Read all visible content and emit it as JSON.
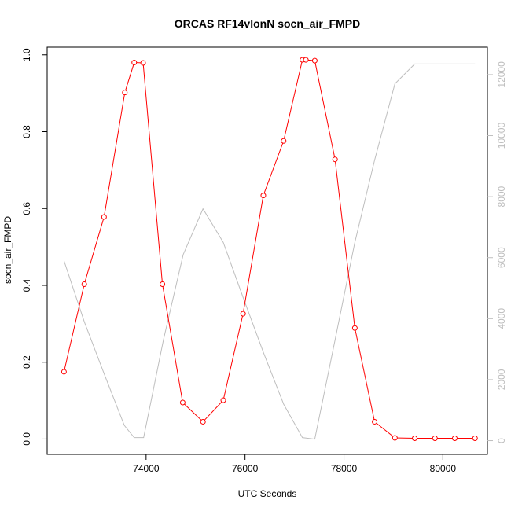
{
  "chart_data": {
    "type": "line",
    "title": "ORCAS RF14vlonN socn_air_FMPD",
    "xlabel": "UTC Seconds",
    "ylabel": "socn_air_FMPD",
    "y2label": "",
    "xlim": [
      72000,
      80900
    ],
    "ylim": [
      -0.04,
      1.02
    ],
    "y2lim": [
      -450,
      12900
    ],
    "x_ticks": [
      74000,
      76000,
      78000,
      80000
    ],
    "y_ticks": [
      0.0,
      0.2,
      0.4,
      0.6,
      0.8,
      1.0
    ],
    "y_tick_labels": [
      "0.0",
      "0.2",
      "0.4",
      "0.6",
      "0.8",
      "1.0"
    ],
    "y2_ticks": [
      0,
      2000,
      4000,
      6000,
      8000,
      10000,
      12000
    ],
    "grid": false,
    "series": [
      {
        "axis": "left",
        "color": "#ff0000",
        "marker": "open-circle",
        "x": [
          72340,
          72750,
          73150,
          73570,
          73760,
          73940,
          74330,
          74740,
          75150,
          75560,
          75960,
          76370,
          76780,
          77160,
          77230,
          77410,
          77820,
          78220,
          78620,
          79030,
          79430,
          79840,
          80240,
          80650
        ],
        "y": [
          0.175,
          0.403,
          0.578,
          0.902,
          0.98,
          0.979,
          0.403,
          0.095,
          0.045,
          0.101,
          0.326,
          0.634,
          0.776,
          0.987,
          0.987,
          0.985,
          0.728,
          0.289,
          0.045,
          0.003,
          0.002,
          0.002,
          0.002,
          0.002
        ]
      },
      {
        "axis": "right",
        "color": "#bebebe",
        "marker": "none",
        "x": [
          72340,
          72750,
          73150,
          73560,
          73760,
          73950,
          74350,
          74750,
          75150,
          75560,
          75960,
          76370,
          76780,
          77160,
          77410,
          77820,
          78220,
          78620,
          79030,
          79430,
          79840,
          80240,
          80650
        ],
        "y": [
          5900,
          3900,
          2200,
          500,
          100,
          100,
          3300,
          6100,
          7600,
          6500,
          4700,
          2900,
          1200,
          100,
          50,
          3300,
          6500,
          9200,
          11700,
          12350,
          12350,
          12350,
          12350
        ]
      }
    ]
  }
}
